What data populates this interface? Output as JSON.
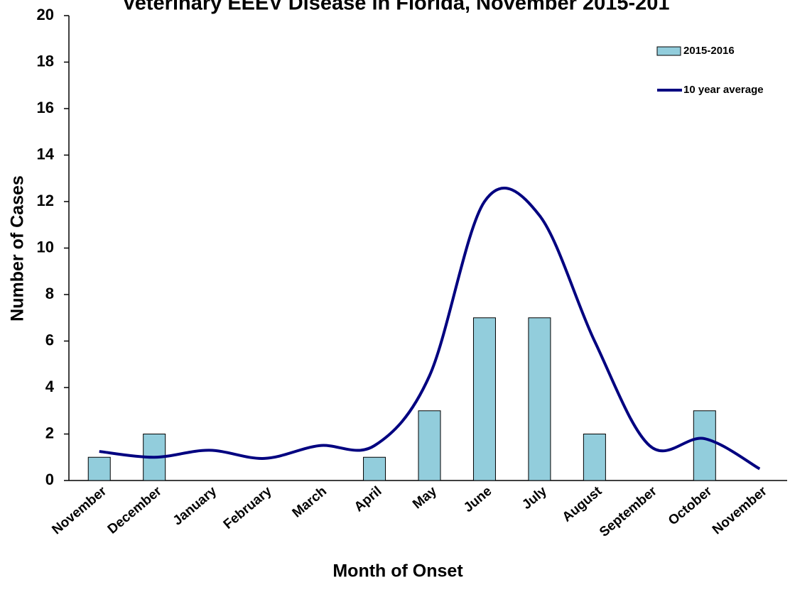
{
  "chart_data": {
    "type": "bar-line",
    "title": "Veterinary EEEV Disease in Florida, November 2015-201",
    "x_label": "Month of Onset",
    "y_label": "Number of Cases",
    "categories": [
      "November",
      "December",
      "January",
      "February",
      "March",
      "April",
      "May",
      "June",
      "July",
      "August",
      "September",
      "October",
      "November"
    ],
    "series": [
      {
        "name": "2015-2016",
        "type": "bar",
        "color": "#92cddc",
        "values": [
          1,
          2,
          null,
          null,
          null,
          1,
          3,
          7,
          7,
          2,
          null,
          3,
          null
        ]
      },
      {
        "name": "10 year average",
        "type": "line",
        "smooth": true,
        "color": "#000080",
        "values": [
          1.25,
          1.0,
          1.3,
          0.95,
          1.5,
          1.5,
          4.5,
          12.0,
          11.4,
          6.0,
          1.5,
          1.8,
          0.5
        ]
      }
    ],
    "ylim": [
      0,
      20
    ],
    "yticks": [
      0,
      2,
      4,
      6,
      8,
      10,
      12,
      14,
      16,
      18,
      20
    ],
    "grid": false,
    "legend": "upper right"
  }
}
